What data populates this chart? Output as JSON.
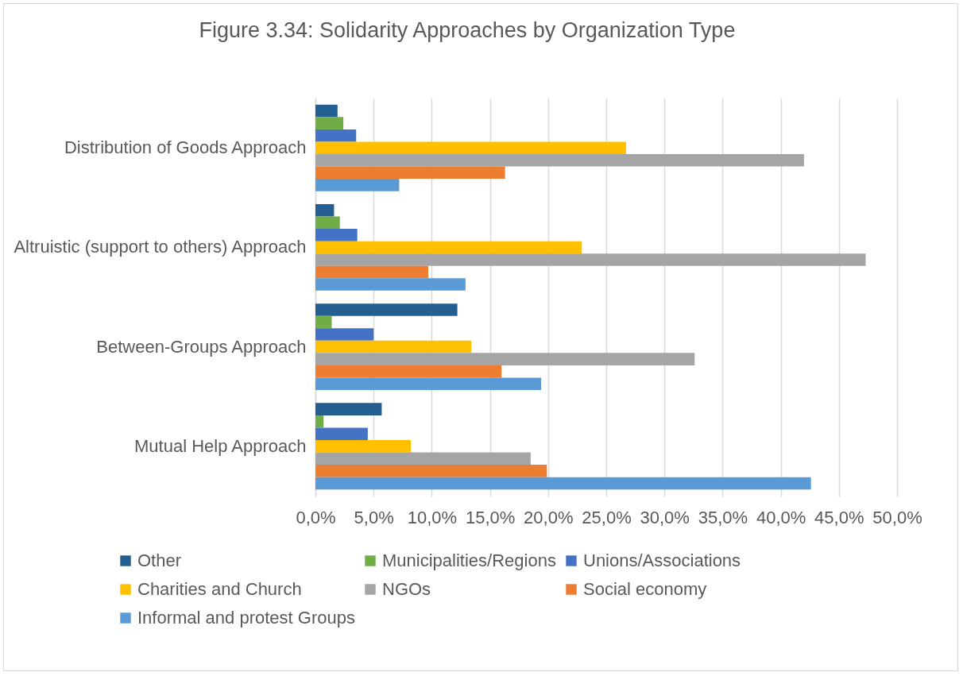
{
  "chart_data": {
    "type": "bar",
    "orientation": "horizontal",
    "title": "Figure 3.34: Solidarity Approaches by Organization Type",
    "categories": [
      "Distribution of Goods Approach",
      "Altruistic (support to others) Approach",
      "Between-Groups Approach",
      "Mutual Help Approach"
    ],
    "series": [
      {
        "name": "Other",
        "color": "#255e91",
        "values": [
          1.9,
          1.6,
          12.2,
          5.7
        ]
      },
      {
        "name": "Municipalities/Regions",
        "color": "#70ad47",
        "values": [
          2.4,
          2.1,
          1.4,
          0.7
        ]
      },
      {
        "name": "Unions/Associations",
        "color": "#4472c4",
        "values": [
          3.5,
          3.6,
          5.0,
          4.5
        ]
      },
      {
        "name": "Charities and Church",
        "color": "#ffc000",
        "values": [
          26.7,
          22.9,
          13.4,
          8.2
        ]
      },
      {
        "name": "NGOs",
        "color": "#a5a5a5",
        "values": [
          42.0,
          47.3,
          32.6,
          18.5
        ]
      },
      {
        "name": "Social economy",
        "color": "#ed7d31",
        "values": [
          16.3,
          9.7,
          16.0,
          19.9
        ]
      },
      {
        "name": "Informal and protest Groups",
        "color": "#5b9bd5",
        "values": [
          7.2,
          12.9,
          19.4,
          42.6
        ]
      }
    ],
    "xlim": [
      0,
      50
    ],
    "xticks": [
      {
        "value": 0,
        "label": "0,0%"
      },
      {
        "value": 5,
        "label": "5,0%"
      },
      {
        "value": 10,
        "label": "10,0%"
      },
      {
        "value": 15,
        "label": "15,0%"
      },
      {
        "value": 20,
        "label": "20,0%"
      },
      {
        "value": 25,
        "label": "25,0%"
      },
      {
        "value": 30,
        "label": "30,0%"
      },
      {
        "value": 35,
        "label": "35,0%"
      },
      {
        "value": 40,
        "label": "40,0%"
      },
      {
        "value": 45,
        "label": "45,0%"
      },
      {
        "value": 50,
        "label": "50,0%"
      }
    ],
    "grid": "x",
    "legend": "bottom"
  }
}
